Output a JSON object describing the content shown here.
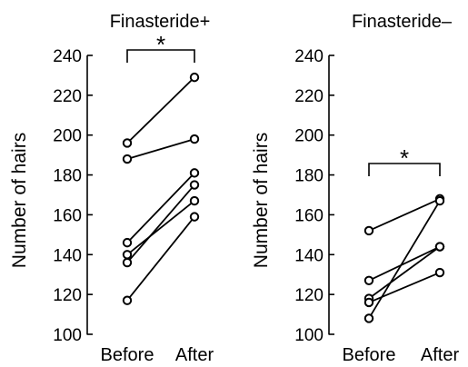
{
  "chart_data": [
    {
      "type": "line",
      "title": "Finasteride+",
      "xlabel": "",
      "ylabel": "Number of hairs",
      "categories": [
        "Before",
        "After"
      ],
      "ylim": [
        100,
        240
      ],
      "yticks": [
        100,
        120,
        140,
        160,
        180,
        200,
        220,
        240
      ],
      "grid": false,
      "series": [
        {
          "values": [
            196,
            229
          ]
        },
        {
          "values": [
            188,
            198
          ]
        },
        {
          "values": [
            146,
            181
          ]
        },
        {
          "values": [
            140,
            167
          ]
        },
        {
          "values": [
            136,
            175
          ]
        },
        {
          "values": [
            117,
            159
          ]
        }
      ],
      "annotations": [
        {
          "text": "*",
          "type": "significance-bracket",
          "between": [
            "Before",
            "After"
          ]
        }
      ],
      "line_color": "#000000"
    },
    {
      "type": "line",
      "title": "Finasteride–",
      "xlabel": "",
      "ylabel": "Number of hairs",
      "categories": [
        "Before",
        "After"
      ],
      "ylim": [
        100,
        240
      ],
      "yticks": [
        100,
        120,
        140,
        160,
        180,
        200,
        220,
        240
      ],
      "grid": false,
      "series": [
        {
          "values": [
            152,
            168
          ]
        },
        {
          "values": [
            127,
            144
          ]
        },
        {
          "values": [
            118,
            144
          ]
        },
        {
          "values": [
            116,
            131
          ]
        },
        {
          "values": [
            108,
            167
          ]
        }
      ],
      "annotations": [
        {
          "text": "*",
          "type": "significance-bracket",
          "between": [
            "Before",
            "After"
          ]
        }
      ],
      "line_color": "#000000"
    }
  ]
}
